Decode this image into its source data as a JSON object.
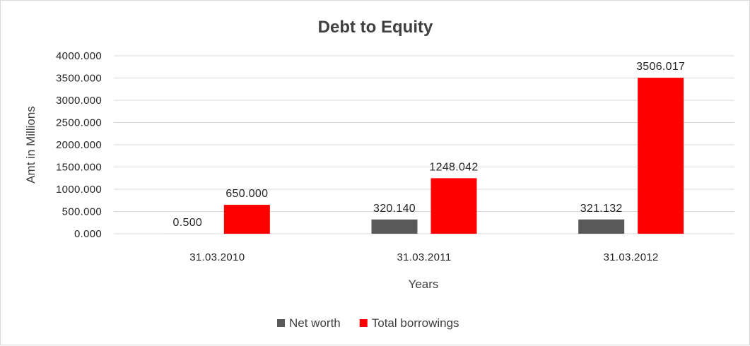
{
  "chart_data": {
    "type": "bar",
    "title": "Debt to Equity",
    "xlabel": "Years",
    "ylabel": "Amt in Millions",
    "categories": [
      "31.03.2010",
      "31.03.2011",
      "31.03.2012"
    ],
    "series": [
      {
        "name": "Net worth",
        "color": "#595959",
        "values": [
          0.5,
          320.14,
          321.132
        ]
      },
      {
        "name": "Total borrowings",
        "color": "#ff0000",
        "values": [
          650.0,
          1248.042,
          3506.017
        ]
      }
    ],
    "value_labels": [
      [
        "0.500",
        "320.140",
        "321.132"
      ],
      [
        "650.000",
        "1248.042",
        "3506.017"
      ]
    ],
    "ylim": [
      0,
      4000
    ],
    "yticks": [
      0,
      500,
      1000,
      1500,
      2000,
      2500,
      3000,
      3500,
      4000
    ],
    "ytick_labels": [
      "0.000",
      "500.000",
      "1000.000",
      "1500.000",
      "2000.000",
      "2500.000",
      "3000.000",
      "3500.000",
      "4000.000"
    ],
    "grid": true,
    "legend_position": "bottom"
  }
}
